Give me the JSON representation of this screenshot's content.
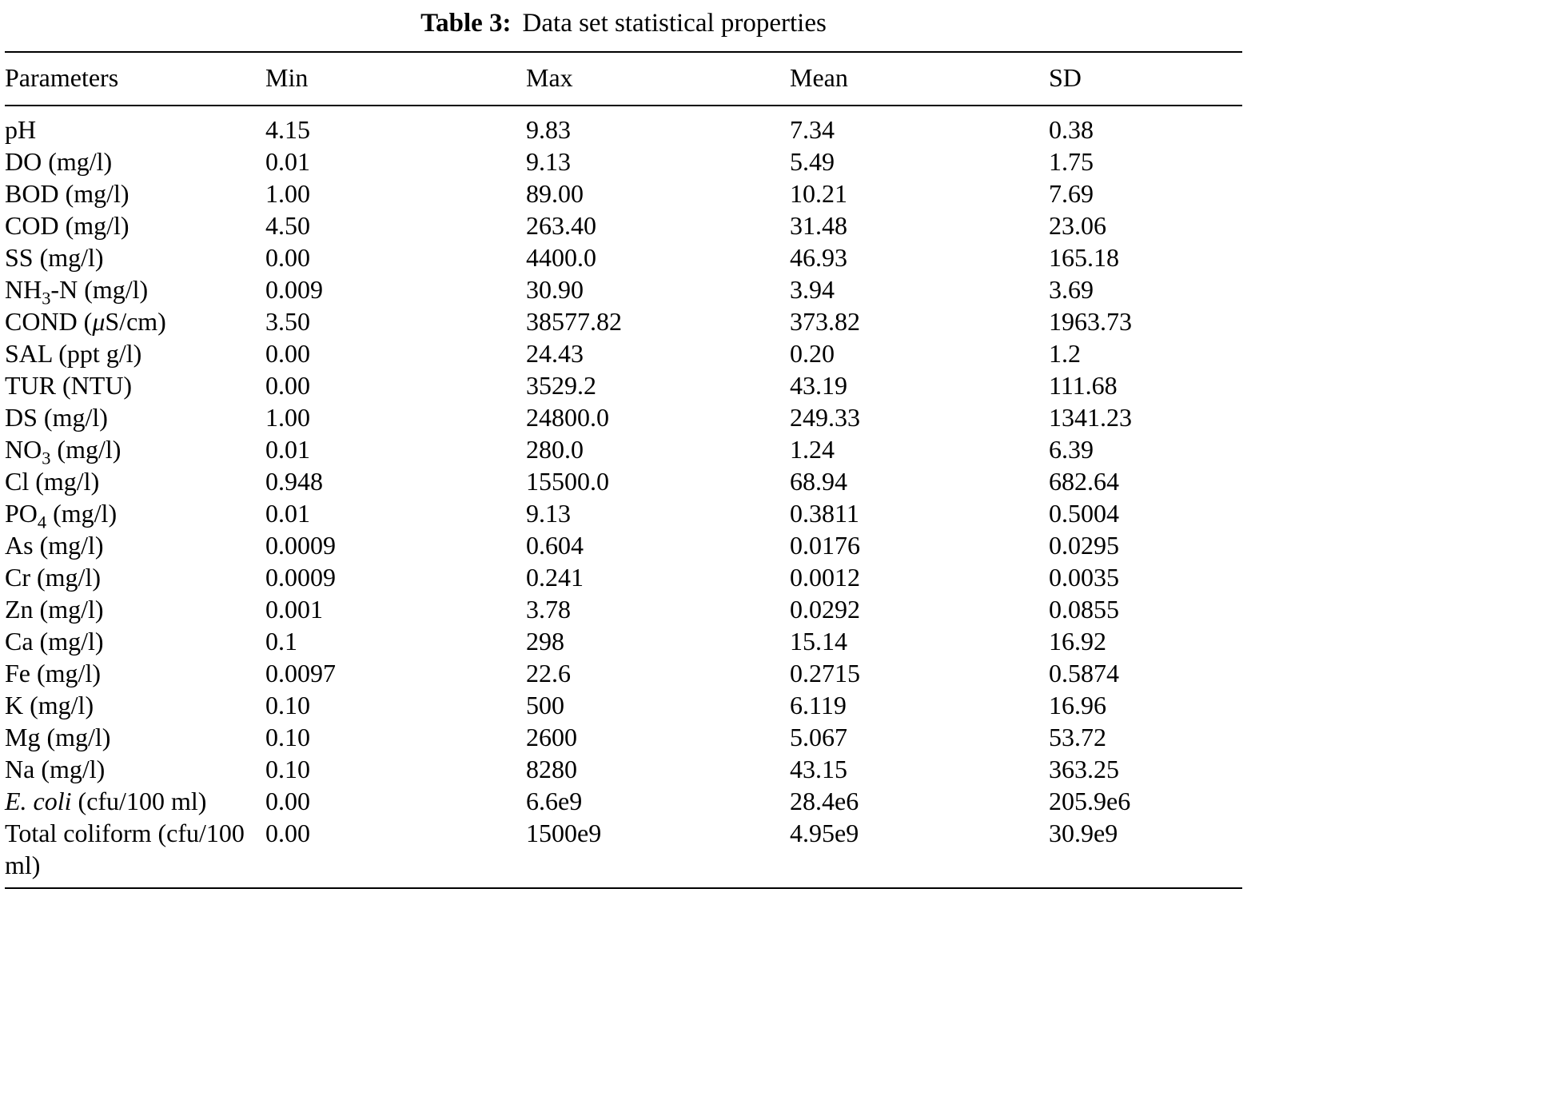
{
  "caption": {
    "label": "Table 3:",
    "text": "Data set statistical properties"
  },
  "table": {
    "columns": [
      "Parameters",
      "Min",
      "Max",
      "Mean",
      "SD"
    ],
    "rows": [
      [
        "pH",
        "4.15",
        "9.83",
        "7.34",
        "0.38"
      ],
      [
        "DO (mg/l)",
        "0.01",
        "9.13",
        "5.49",
        "1.75"
      ],
      [
        "BOD (mg/l)",
        "1.00",
        "89.00",
        "10.21",
        "7.69"
      ],
      [
        "COD (mg/l)",
        "4.50",
        "263.40",
        "31.48",
        "23.06"
      ],
      [
        "SS (mg/l)",
        "0.00",
        "4400.0",
        "46.93",
        "165.18"
      ],
      [
        "NH~3~-N (mg/l)",
        "0.009",
        "30.90",
        "3.94",
        "3.69"
      ],
      [
        "COND (*μ*S/cm)",
        "3.50",
        "38577.82",
        "373.82",
        "1963.73"
      ],
      [
        "SAL (ppt g/l)",
        "0.00",
        "24.43",
        "0.20",
        "1.2"
      ],
      [
        "TUR (NTU)",
        "0.00",
        "3529.2",
        "43.19",
        "111.68"
      ],
      [
        "DS (mg/l)",
        "1.00",
        "24800.0",
        "249.33",
        "1341.23"
      ],
      [
        "NO~3~ (mg/l)",
        "0.01",
        "280.0",
        "1.24",
        "6.39"
      ],
      [
        "Cl (mg/l)",
        "0.948",
        "15500.0",
        "68.94",
        "682.64"
      ],
      [
        "PO~4~ (mg/l)",
        "0.01",
        "9.13",
        "0.3811",
        "0.5004"
      ],
      [
        "As (mg/l)",
        "0.0009",
        "0.604",
        "0.0176",
        "0.0295"
      ],
      [
        "Cr (mg/l)",
        "0.0009",
        "0.241",
        "0.0012",
        "0.0035"
      ],
      [
        "Zn (mg/l)",
        "0.001",
        "3.78",
        "0.0292",
        "0.0855"
      ],
      [
        "Ca (mg/l)",
        "0.1",
        "298",
        "15.14",
        "16.92"
      ],
      [
        "Fe (mg/l)",
        "0.0097",
        "22.6",
        "0.2715",
        "0.5874"
      ],
      [
        "K (mg/l)",
        "0.10",
        "500",
        "6.119",
        "16.96"
      ],
      [
        "Mg (mg/l)",
        "0.10",
        "2600",
        "5.067",
        "53.72"
      ],
      [
        "Na (mg/l)",
        "0.10",
        "8280",
        "43.15",
        "363.25"
      ],
      [
        "*E. coli* (cfu/100 ml)",
        "0.00",
        "6.6e9",
        "28.4e6",
        "205.9e6"
      ],
      [
        "Total coliform (cfu/100 ml)",
        "0.00",
        "1500e9",
        "4.95e9",
        "30.9e9"
      ]
    ]
  }
}
